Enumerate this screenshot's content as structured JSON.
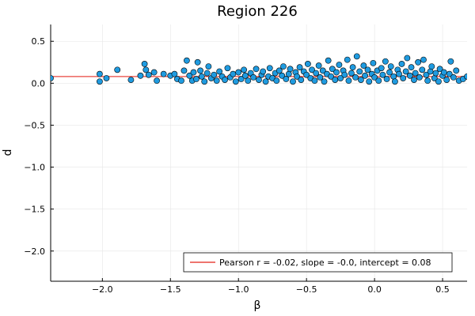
{
  "chart_data": {
    "type": "scatter",
    "title": "Region 226",
    "xlabel": "β",
    "ylabel": "d",
    "xlim": [
      -2.38,
      0.68
    ],
    "ylim": [
      -2.36,
      0.7
    ],
    "xticks": [
      -2.0,
      -1.5,
      -1.0,
      -0.5,
      0.0,
      0.5
    ],
    "yticks": [
      -2.0,
      -1.5,
      -1.0,
      -0.5,
      0.0,
      0.5
    ],
    "xtick_labels": [
      "−2.0",
      "−1.5",
      "−1.0",
      "−0.5",
      "0.0",
      "0.5"
    ],
    "ytick_labels": [
      "−2.0",
      "−1.5",
      "−1.0",
      "−0.5",
      "0.0",
      "0.5"
    ],
    "grid": true,
    "legend_position": "bottom-right",
    "point_color": "#1f9be0",
    "line_color": "#e8463e",
    "fit_line": {
      "label": "Pearson r = -0.02, slope = -0.0, intercept = 0.08",
      "slope": -0.0,
      "intercept": 0.08
    },
    "points": [
      [
        -2.38,
        0.06
      ],
      [
        -2.02,
        0.11
      ],
      [
        -2.02,
        0.02
      ],
      [
        -1.97,
        0.06
      ],
      [
        -1.89,
        0.16
      ],
      [
        -1.79,
        0.04
      ],
      [
        -1.72,
        0.09
      ],
      [
        -1.69,
        0.23
      ],
      [
        -1.68,
        0.16
      ],
      [
        -1.66,
        0.1
      ],
      [
        -1.62,
        0.13
      ],
      [
        -1.6,
        0.03
      ],
      [
        -1.55,
        0.11
      ],
      [
        -1.5,
        0.09
      ],
      [
        -1.47,
        0.11
      ],
      [
        -1.45,
        0.05
      ],
      [
        -1.42,
        0.03
      ],
      [
        -1.4,
        0.15
      ],
      [
        -1.38,
        0.27
      ],
      [
        -1.36,
        0.09
      ],
      [
        -1.34,
        0.03
      ],
      [
        -1.33,
        0.13
      ],
      [
        -1.31,
        0.05
      ],
      [
        -1.3,
        0.25
      ],
      [
        -1.28,
        0.15
      ],
      [
        -1.27,
        0.08
      ],
      [
        -1.25,
        0.02
      ],
      [
        -1.23,
        0.12
      ],
      [
        -1.22,
        0.2
      ],
      [
        -1.2,
        0.06
      ],
      [
        -1.18,
        0.1
      ],
      [
        -1.16,
        0.03
      ],
      [
        -1.14,
        0.14
      ],
      [
        -1.12,
        0.08
      ],
      [
        -1.1,
        0.04
      ],
      [
        -1.08,
        0.18
      ],
      [
        -1.06,
        0.07
      ],
      [
        -1.04,
        0.11
      ],
      [
        -1.02,
        0.02
      ],
      [
        -1.0,
        0.13
      ],
      [
        -0.98,
        0.05
      ],
      [
        -0.96,
        0.16
      ],
      [
        -0.95,
        0.09
      ],
      [
        -0.93,
        0.03
      ],
      [
        -0.91,
        0.12
      ],
      [
        -0.89,
        0.07
      ],
      [
        -0.87,
        0.17
      ],
      [
        -0.85,
        0.04
      ],
      [
        -0.83,
        0.1
      ],
      [
        -0.82,
        0.14
      ],
      [
        -0.8,
        0.02
      ],
      [
        -0.78,
        0.08
      ],
      [
        -0.77,
        0.18
      ],
      [
        -0.75,
        0.06
      ],
      [
        -0.73,
        0.12
      ],
      [
        -0.72,
        0.03
      ],
      [
        -0.7,
        0.15
      ],
      [
        -0.68,
        0.09
      ],
      [
        -0.67,
        0.2
      ],
      [
        -0.65,
        0.05
      ],
      [
        -0.63,
        0.11
      ],
      [
        -0.62,
        0.17
      ],
      [
        -0.6,
        0.02
      ],
      [
        -0.58,
        0.13
      ],
      [
        -0.57,
        0.08
      ],
      [
        -0.55,
        0.19
      ],
      [
        -0.54,
        0.04
      ],
      [
        -0.52,
        0.14
      ],
      [
        -0.5,
        0.1
      ],
      [
        -0.49,
        0.23
      ],
      [
        -0.47,
        0.06
      ],
      [
        -0.46,
        0.16
      ],
      [
        -0.44,
        0.03
      ],
      [
        -0.43,
        0.12
      ],
      [
        -0.41,
        0.21
      ],
      [
        -0.4,
        0.07
      ],
      [
        -0.38,
        0.15
      ],
      [
        -0.37,
        0.02
      ],
      [
        -0.35,
        0.11
      ],
      [
        -0.34,
        0.27
      ],
      [
        -0.32,
        0.08
      ],
      [
        -0.31,
        0.17
      ],
      [
        -0.29,
        0.04
      ],
      [
        -0.28,
        0.13
      ],
      [
        -0.26,
        0.22
      ],
      [
        -0.25,
        0.06
      ],
      [
        -0.23,
        0.15
      ],
      [
        -0.22,
        0.1
      ],
      [
        -0.2,
        0.28
      ],
      [
        -0.19,
        0.03
      ],
      [
        -0.17,
        0.12
      ],
      [
        -0.16,
        0.19
      ],
      [
        -0.14,
        0.07
      ],
      [
        -0.13,
        0.32
      ],
      [
        -0.11,
        0.14
      ],
      [
        -0.1,
        0.04
      ],
      [
        -0.08,
        0.21
      ],
      [
        -0.07,
        0.09
      ],
      [
        -0.05,
        0.16
      ],
      [
        -0.04,
        0.02
      ],
      [
        -0.02,
        0.11
      ],
      [
        -0.01,
        0.24
      ],
      [
        0.0,
        0.07
      ],
      [
        0.02,
        0.15
      ],
      [
        0.03,
        0.03
      ],
      [
        0.05,
        0.18
      ],
      [
        0.06,
        0.1
      ],
      [
        0.08,
        0.26
      ],
      [
        0.09,
        0.05
      ],
      [
        0.11,
        0.13
      ],
      [
        0.12,
        0.2
      ],
      [
        0.14,
        0.08
      ],
      [
        0.15,
        0.02
      ],
      [
        0.17,
        0.16
      ],
      [
        0.18,
        0.11
      ],
      [
        0.2,
        0.23
      ],
      [
        0.21,
        0.06
      ],
      [
        0.23,
        0.14
      ],
      [
        0.24,
        0.3
      ],
      [
        0.26,
        0.09
      ],
      [
        0.27,
        0.19
      ],
      [
        0.29,
        0.04
      ],
      [
        0.3,
        0.12
      ],
      [
        0.32,
        0.25
      ],
      [
        0.33,
        0.07
      ],
      [
        0.35,
        0.16
      ],
      [
        0.36,
        0.28
      ],
      [
        0.38,
        0.1
      ],
      [
        0.39,
        0.03
      ],
      [
        0.41,
        0.14
      ],
      [
        0.42,
        0.2
      ],
      [
        0.44,
        0.06
      ],
      [
        0.45,
        0.12
      ],
      [
        0.47,
        0.02
      ],
      [
        0.48,
        0.17
      ],
      [
        0.5,
        0.09
      ],
      [
        0.51,
        0.13
      ],
      [
        0.53,
        0.04
      ],
      [
        0.55,
        0.11
      ],
      [
        0.56,
        0.26
      ],
      [
        0.58,
        0.07
      ],
      [
        0.6,
        0.15
      ],
      [
        0.62,
        0.03
      ],
      [
        0.65,
        0.05
      ],
      [
        0.68,
        0.08
      ]
    ]
  }
}
